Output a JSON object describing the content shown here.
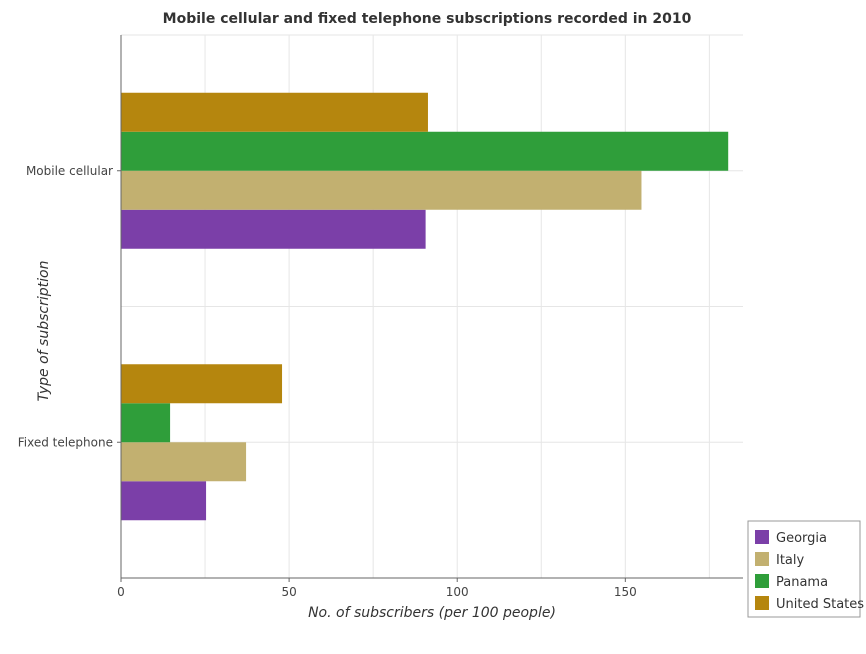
{
  "chart_data": {
    "type": "bar",
    "orientation": "horizontal",
    "title": "Mobile cellular and fixed telephone subscriptions recorded in 2010",
    "xlabel": "No. of subscribers (per 100 people)",
    "ylabel": "Type of subscription",
    "categories": [
      "Mobile cellular",
      "Fixed telephone"
    ],
    "xlim": [
      0,
      185
    ],
    "xticks": [
      0,
      50,
      100,
      150
    ],
    "grid": true,
    "legend_position": "bottom-right",
    "series": [
      {
        "name": "Georgia",
        "color": "#7b3fa8",
        "values": [
          90.6,
          25.3
        ]
      },
      {
        "name": "Italy",
        "color": "#c2b070",
        "values": [
          154.8,
          37.2
        ]
      },
      {
        "name": "Panama",
        "color": "#2f9e3a",
        "values": [
          180.6,
          14.6
        ]
      },
      {
        "name": "United States",
        "color": "#b5860e",
        "values": [
          91.3,
          47.9
        ]
      }
    ]
  }
}
